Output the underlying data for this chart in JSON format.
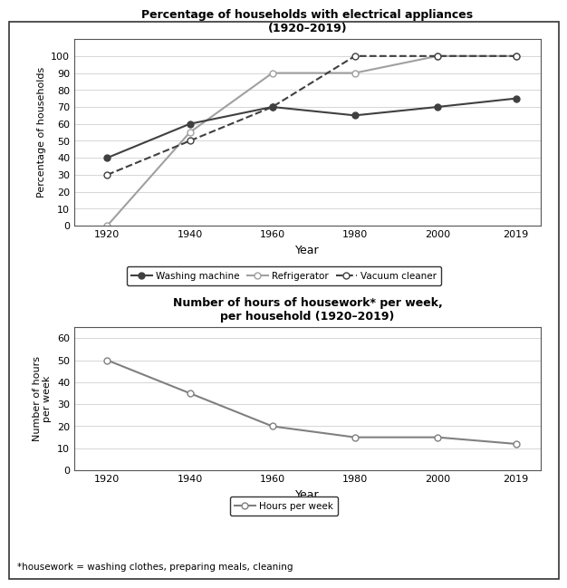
{
  "years": [
    1920,
    1940,
    1960,
    1980,
    2000,
    2019
  ],
  "washing_machine": [
    40,
    60,
    70,
    65,
    70,
    75
  ],
  "refrigerator": [
    0,
    55,
    90,
    90,
    100,
    100
  ],
  "vacuum_cleaner": [
    30,
    50,
    70,
    100,
    100,
    100
  ],
  "hours_per_week": [
    50,
    35,
    20,
    15,
    15,
    12
  ],
  "chart1_title": "Percentage of households with electrical appliances\n(1920–2019)",
  "chart1_ylabel": "Percentage of households",
  "chart1_xlabel": "Year",
  "chart1_ylim": [
    0,
    110
  ],
  "chart1_yticks": [
    0,
    10,
    20,
    30,
    40,
    50,
    60,
    70,
    80,
    90,
    100
  ],
  "chart2_title": "Number of hours of housework* per week,\nper household (1920–2019)",
  "chart2_ylabel": "Number of hours\nper week",
  "chart2_xlabel": "Year",
  "chart2_ylim": [
    0,
    65
  ],
  "chart2_yticks": [
    0,
    10,
    20,
    30,
    40,
    50,
    60
  ],
  "footnote": "*housework = washing clothes, preparing meals, cleaning",
  "line_color_wm": "#404040",
  "line_color_ref": "#a0a0a0",
  "line_color_vc": "#404040",
  "line_color_hours": "#808080",
  "bg_color": "#ffffff",
  "legend1_labels": [
    "Washing machine",
    "Refrigerator",
    "Vacuum cleaner"
  ],
  "legend2_label": "Hours per week"
}
